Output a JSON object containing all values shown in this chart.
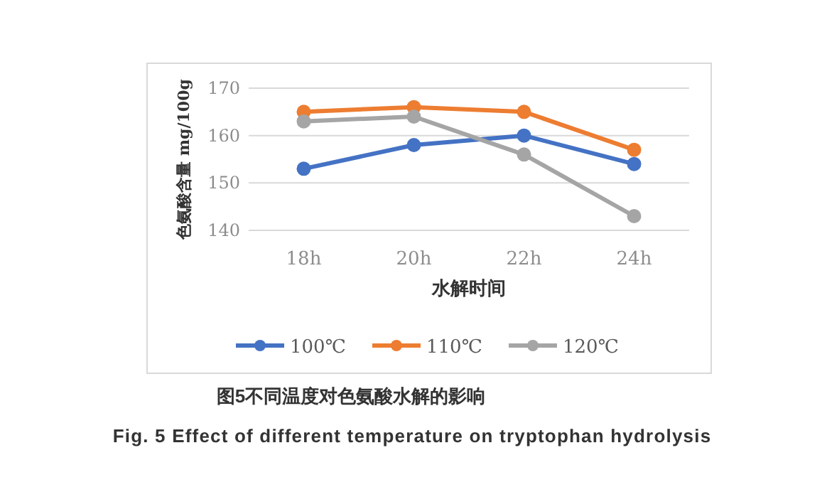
{
  "chart_data": {
    "type": "line",
    "title": "图5不同温度对色氨酸水解的影响",
    "subtitle": "Fig. 5 Effect of different temperature on tryptophan hydrolysis",
    "xlabel": "水解时间",
    "ylabel": "色氨酸含量 mg/100g",
    "categories": [
      "18h",
      "20h",
      "22h",
      "24h"
    ],
    "series": [
      {
        "name": "100℃",
        "color": "#4472c4",
        "values": [
          153,
          158,
          160,
          154
        ]
      },
      {
        "name": "110℃",
        "color": "#ed7d31",
        "values": [
          165,
          166,
          165,
          157
        ]
      },
      {
        "name": "120℃",
        "color": "#a5a5a5",
        "values": [
          163,
          164,
          156,
          143
        ]
      }
    ],
    "ylim": [
      140,
      170
    ],
    "yticks": [
      140,
      150,
      160,
      170
    ],
    "grid": "y",
    "legend": "bottom",
    "marker": "circle",
    "line_style": "solid"
  }
}
